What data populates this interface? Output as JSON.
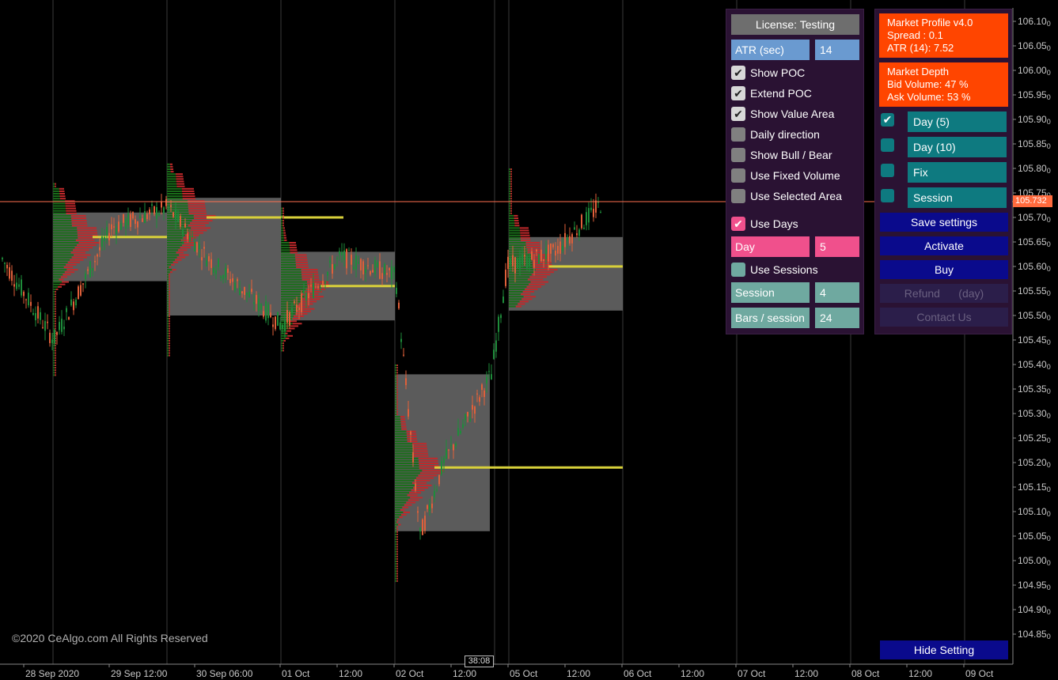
{
  "price_axis": {
    "labels": [
      "106.10",
      "106.05",
      "106.00",
      "105.95",
      "105.90",
      "105.85",
      "105.80",
      "105.75",
      "105.70",
      "105.65",
      "105.60",
      "105.55",
      "105.50",
      "105.45",
      "105.40",
      "105.35",
      "105.30",
      "105.25",
      "105.20",
      "105.15",
      "105.10",
      "105.05",
      "105.00",
      "104.95",
      "104.90",
      "104.85"
    ],
    "sub_digit": "0",
    "current_price": "105.732"
  },
  "time_axis": {
    "labels": [
      "28 Sep 2020",
      "29 Sep 12:00",
      "30 Sep 06:00",
      "01 Oct",
      "12:00",
      "02 Oct",
      "12:00",
      "05 Oct",
      "12:00",
      "06 Oct",
      "12:00",
      "07 Oct",
      "12:00",
      "08 Oct",
      "12:00",
      "09 Oct"
    ],
    "cursor_time": "38:08"
  },
  "copyright": "©2020 CeAlgo.com All Rights Reserved",
  "settings": {
    "license": "License: Testing",
    "atr_label": "ATR (sec)",
    "atr_value": "14",
    "options": [
      {
        "label": "Show POC",
        "checked": true
      },
      {
        "label": "Extend POC",
        "checked": true
      },
      {
        "label": "Show Value Area",
        "checked": true
      },
      {
        "label": "Daily direction",
        "checked": false
      },
      {
        "label": "Show Bull / Bear",
        "checked": false
      },
      {
        "label": "Use Fixed Volume",
        "checked": false
      },
      {
        "label": "Use Selected Area",
        "checked": false
      }
    ],
    "use_days_label": "Use Days",
    "day_label": "Day",
    "day_value": "5",
    "use_sessions_label": "Use Sessions",
    "session_label": "Session",
    "session_value": "4",
    "bars_label": "Bars / session",
    "bars_value": "24"
  },
  "info": {
    "title": "Market Profile v4.0",
    "spread": "Spread : 0.1",
    "atr": "ATR (14):  7.52",
    "depth_title": "Market Depth",
    "bid": "Bid Volume: 47 %",
    "ask": "Ask Volume: 53 %",
    "timeframes": [
      {
        "label": "Day (5)",
        "checked": true
      },
      {
        "label": "Day (10)",
        "checked": false
      },
      {
        "label": "Fix",
        "checked": false
      },
      {
        "label": "Session",
        "checked": false
      }
    ],
    "buttons": {
      "save": "Save settings",
      "activate": "Activate",
      "buy": "Buy",
      "refund": "Refund      (day)",
      "contact": "Contact Us"
    },
    "hide": "Hide Setting"
  },
  "colors": {
    "bull": "#1e8c3a",
    "bear": "#e0603a",
    "profile_bull": "#1a6e1a",
    "profile_bear": "#c0292b",
    "value_area": "#6b6b6b",
    "poc": "#d8d03a"
  }
}
